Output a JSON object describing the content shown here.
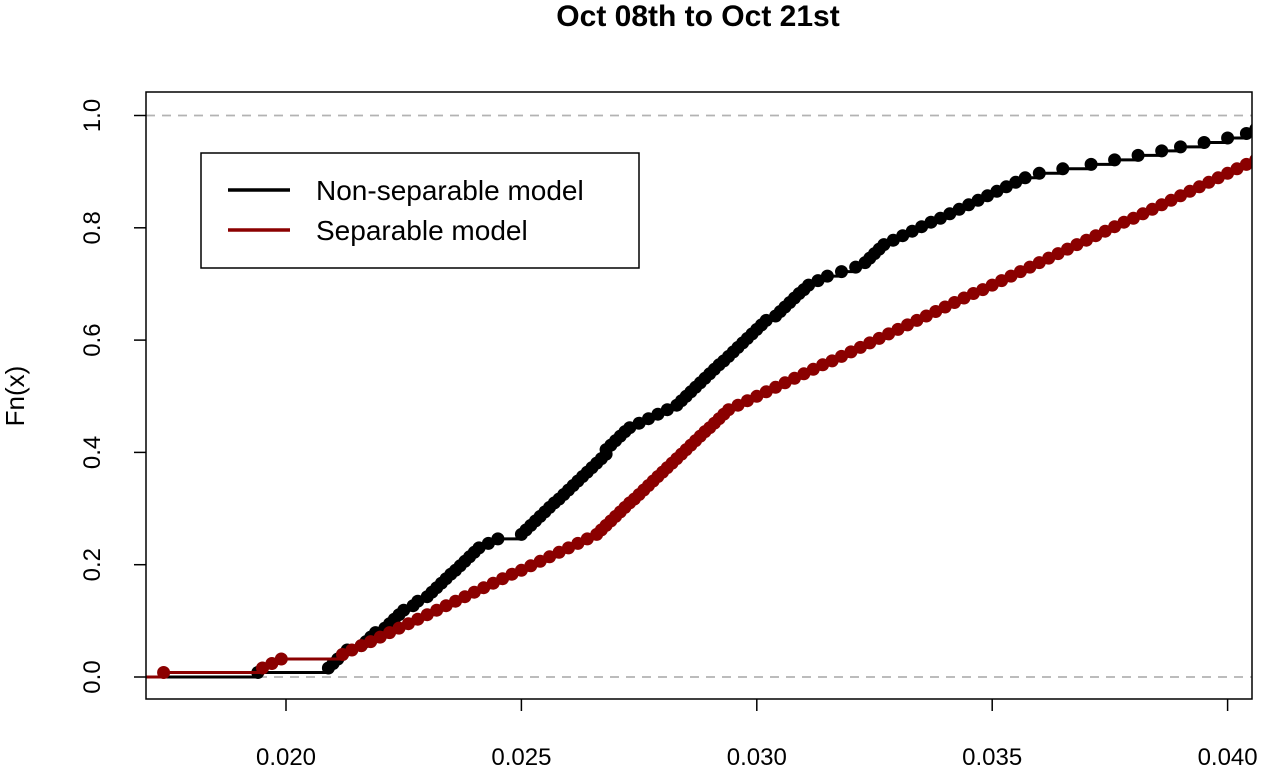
{
  "chart_data": {
    "type": "line",
    "subtype": "empirical-cdf-step",
    "title": "Oct 08th to Oct 21st",
    "xlabel": "",
    "ylabel": "Fn(x)",
    "xlim": [
      0.017,
      0.0405
    ],
    "ylim": [
      0.0,
      1.0
    ],
    "x_ticks": [
      0.02,
      0.025,
      0.03,
      0.035,
      0.04
    ],
    "x_tick_labels": [
      "0.020",
      "0.025",
      "0.030",
      "0.035",
      "0.040"
    ],
    "y_ticks": [
      0.0,
      0.2,
      0.4,
      0.6,
      0.8,
      1.0
    ],
    "y_tick_labels": [
      "0.0",
      "0.2",
      "0.4",
      "0.6",
      "0.8",
      "1.0"
    ],
    "reference_lines_y": [
      0.0,
      1.0
    ],
    "grid": false,
    "legend_position": "top-left",
    "series": [
      {
        "name": "Non-separable model",
        "color": "#000000",
        "points": [
          [
            0.0194,
            0.008
          ],
          [
            0.0209,
            0.016
          ],
          [
            0.021,
            0.024
          ],
          [
            0.0211,
            0.032
          ],
          [
            0.0212,
            0.04
          ],
          [
            0.0213,
            0.048
          ],
          [
            0.0216,
            0.056
          ],
          [
            0.0217,
            0.063
          ],
          [
            0.0218,
            0.071
          ],
          [
            0.0219,
            0.079
          ],
          [
            0.0221,
            0.087
          ],
          [
            0.0222,
            0.095
          ],
          [
            0.0223,
            0.103
          ],
          [
            0.0224,
            0.111
          ],
          [
            0.0225,
            0.119
          ],
          [
            0.0227,
            0.127
          ],
          [
            0.0228,
            0.135
          ],
          [
            0.023,
            0.143
          ],
          [
            0.0231,
            0.151
          ],
          [
            0.0232,
            0.159
          ],
          [
            0.0233,
            0.167
          ],
          [
            0.0234,
            0.175
          ],
          [
            0.0235,
            0.183
          ],
          [
            0.0236,
            0.19
          ],
          [
            0.0237,
            0.198
          ],
          [
            0.0238,
            0.206
          ],
          [
            0.0239,
            0.214
          ],
          [
            0.024,
            0.222
          ],
          [
            0.0241,
            0.23
          ],
          [
            0.0243,
            0.238
          ],
          [
            0.0245,
            0.246
          ],
          [
            0.025,
            0.254
          ],
          [
            0.0251,
            0.262
          ],
          [
            0.0252,
            0.27
          ],
          [
            0.0253,
            0.278
          ],
          [
            0.0254,
            0.286
          ],
          [
            0.0255,
            0.294
          ],
          [
            0.0256,
            0.302
          ],
          [
            0.0257,
            0.31
          ],
          [
            0.0258,
            0.317
          ],
          [
            0.0259,
            0.325
          ],
          [
            0.026,
            0.333
          ],
          [
            0.0261,
            0.341
          ],
          [
            0.0262,
            0.349
          ],
          [
            0.0263,
            0.357
          ],
          [
            0.0264,
            0.365
          ],
          [
            0.0265,
            0.373
          ],
          [
            0.0266,
            0.381
          ],
          [
            0.0267,
            0.389
          ],
          [
            0.0268,
            0.397
          ],
          [
            0.0268,
            0.405
          ],
          [
            0.0269,
            0.413
          ],
          [
            0.027,
            0.421
          ],
          [
            0.0271,
            0.429
          ],
          [
            0.0272,
            0.437
          ],
          [
            0.0273,
            0.444
          ],
          [
            0.0275,
            0.452
          ],
          [
            0.0277,
            0.46
          ],
          [
            0.0279,
            0.468
          ],
          [
            0.0281,
            0.476
          ],
          [
            0.0283,
            0.484
          ],
          [
            0.0284,
            0.492
          ],
          [
            0.0285,
            0.5
          ],
          [
            0.0286,
            0.508
          ],
          [
            0.0287,
            0.516
          ],
          [
            0.0288,
            0.524
          ],
          [
            0.0289,
            0.532
          ],
          [
            0.029,
            0.54
          ],
          [
            0.0291,
            0.548
          ],
          [
            0.0292,
            0.556
          ],
          [
            0.0293,
            0.563
          ],
          [
            0.0294,
            0.571
          ],
          [
            0.0295,
            0.579
          ],
          [
            0.0296,
            0.587
          ],
          [
            0.0297,
            0.595
          ],
          [
            0.0298,
            0.603
          ],
          [
            0.0299,
            0.611
          ],
          [
            0.03,
            0.619
          ],
          [
            0.0301,
            0.627
          ],
          [
            0.0302,
            0.635
          ],
          [
            0.0304,
            0.643
          ],
          [
            0.0305,
            0.651
          ],
          [
            0.0306,
            0.659
          ],
          [
            0.0307,
            0.667
          ],
          [
            0.0308,
            0.675
          ],
          [
            0.0309,
            0.683
          ],
          [
            0.031,
            0.69
          ],
          [
            0.0311,
            0.698
          ],
          [
            0.0313,
            0.706
          ],
          [
            0.0315,
            0.714
          ],
          [
            0.0318,
            0.722
          ],
          [
            0.0321,
            0.73
          ],
          [
            0.0323,
            0.738
          ],
          [
            0.0324,
            0.746
          ],
          [
            0.0325,
            0.754
          ],
          [
            0.0326,
            0.762
          ],
          [
            0.0327,
            0.77
          ],
          [
            0.0329,
            0.778
          ],
          [
            0.0331,
            0.786
          ],
          [
            0.0333,
            0.794
          ],
          [
            0.0335,
            0.802
          ],
          [
            0.0337,
            0.81
          ],
          [
            0.0339,
            0.817
          ],
          [
            0.0341,
            0.825
          ],
          [
            0.0343,
            0.833
          ],
          [
            0.0345,
            0.841
          ],
          [
            0.0347,
            0.849
          ],
          [
            0.0349,
            0.857
          ],
          [
            0.0351,
            0.865
          ],
          [
            0.0353,
            0.873
          ],
          [
            0.0355,
            0.881
          ],
          [
            0.0357,
            0.889
          ],
          [
            0.036,
            0.897
          ],
          [
            0.0365,
            0.905
          ],
          [
            0.0371,
            0.913
          ],
          [
            0.0376,
            0.921
          ],
          [
            0.0381,
            0.929
          ],
          [
            0.0386,
            0.937
          ],
          [
            0.039,
            0.944
          ],
          [
            0.0395,
            0.952
          ],
          [
            0.04,
            0.96
          ],
          [
            0.0404,
            0.968
          ],
          [
            0.0406,
            0.976
          ],
          [
            0.0408,
            0.984
          ],
          [
            0.0411,
            0.992
          ],
          [
            0.0413,
            1.0
          ]
        ]
      },
      {
        "name": "Separable model",
        "color": "#8b0000",
        "points": [
          [
            0.0174,
            0.008
          ],
          [
            0.0195,
            0.016
          ],
          [
            0.0197,
            0.024
          ],
          [
            0.0199,
            0.032
          ],
          [
            0.0212,
            0.04
          ],
          [
            0.0214,
            0.048
          ],
          [
            0.0216,
            0.056
          ],
          [
            0.0218,
            0.063
          ],
          [
            0.022,
            0.071
          ],
          [
            0.0222,
            0.079
          ],
          [
            0.0224,
            0.087
          ],
          [
            0.0226,
            0.095
          ],
          [
            0.0228,
            0.103
          ],
          [
            0.023,
            0.111
          ],
          [
            0.0232,
            0.119
          ],
          [
            0.0234,
            0.127
          ],
          [
            0.0236,
            0.135
          ],
          [
            0.0238,
            0.143
          ],
          [
            0.024,
            0.151
          ],
          [
            0.0242,
            0.159
          ],
          [
            0.0244,
            0.167
          ],
          [
            0.0246,
            0.175
          ],
          [
            0.0248,
            0.183
          ],
          [
            0.025,
            0.19
          ],
          [
            0.0252,
            0.198
          ],
          [
            0.0254,
            0.206
          ],
          [
            0.0256,
            0.214
          ],
          [
            0.0258,
            0.222
          ],
          [
            0.026,
            0.23
          ],
          [
            0.0262,
            0.238
          ],
          [
            0.0264,
            0.246
          ],
          [
            0.0266,
            0.254
          ],
          [
            0.0267,
            0.262
          ],
          [
            0.0268,
            0.27
          ],
          [
            0.0269,
            0.278
          ],
          [
            0.027,
            0.286
          ],
          [
            0.0271,
            0.294
          ],
          [
            0.0272,
            0.302
          ],
          [
            0.0273,
            0.31
          ],
          [
            0.0274,
            0.317
          ],
          [
            0.0275,
            0.325
          ],
          [
            0.0276,
            0.333
          ],
          [
            0.0277,
            0.341
          ],
          [
            0.0278,
            0.349
          ],
          [
            0.0279,
            0.357
          ],
          [
            0.028,
            0.365
          ],
          [
            0.0281,
            0.373
          ],
          [
            0.0282,
            0.381
          ],
          [
            0.0283,
            0.389
          ],
          [
            0.0284,
            0.397
          ],
          [
            0.0285,
            0.405
          ],
          [
            0.0286,
            0.413
          ],
          [
            0.0287,
            0.421
          ],
          [
            0.0288,
            0.429
          ],
          [
            0.0289,
            0.437
          ],
          [
            0.029,
            0.444
          ],
          [
            0.0291,
            0.452
          ],
          [
            0.0292,
            0.46
          ],
          [
            0.0293,
            0.468
          ],
          [
            0.0294,
            0.476
          ],
          [
            0.0296,
            0.484
          ],
          [
            0.0298,
            0.492
          ],
          [
            0.03,
            0.5
          ],
          [
            0.0302,
            0.508
          ],
          [
            0.0304,
            0.516
          ],
          [
            0.0306,
            0.524
          ],
          [
            0.0308,
            0.532
          ],
          [
            0.031,
            0.54
          ],
          [
            0.0312,
            0.548
          ],
          [
            0.0314,
            0.556
          ],
          [
            0.0316,
            0.563
          ],
          [
            0.0318,
            0.571
          ],
          [
            0.032,
            0.579
          ],
          [
            0.0322,
            0.587
          ],
          [
            0.0324,
            0.595
          ],
          [
            0.0326,
            0.603
          ],
          [
            0.0328,
            0.611
          ],
          [
            0.033,
            0.619
          ],
          [
            0.0332,
            0.627
          ],
          [
            0.0334,
            0.635
          ],
          [
            0.0336,
            0.643
          ],
          [
            0.0338,
            0.651
          ],
          [
            0.034,
            0.659
          ],
          [
            0.0342,
            0.667
          ],
          [
            0.0344,
            0.675
          ],
          [
            0.0346,
            0.683
          ],
          [
            0.0348,
            0.69
          ],
          [
            0.035,
            0.698
          ],
          [
            0.0352,
            0.706
          ],
          [
            0.0354,
            0.714
          ],
          [
            0.0356,
            0.722
          ],
          [
            0.0358,
            0.73
          ],
          [
            0.036,
            0.738
          ],
          [
            0.0362,
            0.746
          ],
          [
            0.0364,
            0.754
          ],
          [
            0.0366,
            0.762
          ],
          [
            0.0368,
            0.77
          ],
          [
            0.037,
            0.778
          ],
          [
            0.0372,
            0.786
          ],
          [
            0.0374,
            0.794
          ],
          [
            0.0376,
            0.802
          ],
          [
            0.0378,
            0.81
          ],
          [
            0.038,
            0.817
          ],
          [
            0.0382,
            0.825
          ],
          [
            0.0384,
            0.833
          ],
          [
            0.0386,
            0.841
          ],
          [
            0.0388,
            0.849
          ],
          [
            0.039,
            0.857
          ],
          [
            0.0392,
            0.865
          ],
          [
            0.0394,
            0.873
          ],
          [
            0.0396,
            0.881
          ],
          [
            0.0398,
            0.889
          ],
          [
            0.04,
            0.897
          ],
          [
            0.0402,
            0.905
          ],
          [
            0.0404,
            0.913
          ],
          [
            0.0406,
            0.921
          ],
          [
            0.0408,
            0.929
          ],
          [
            0.041,
            0.937
          ],
          [
            0.0412,
            0.944
          ],
          [
            0.0414,
            0.952
          ],
          [
            0.0416,
            0.96
          ],
          [
            0.0418,
            0.968
          ],
          [
            0.042,
            0.976
          ],
          [
            0.0422,
            0.984
          ],
          [
            0.0424,
            0.992
          ],
          [
            0.0426,
            1.0
          ]
        ]
      }
    ]
  }
}
